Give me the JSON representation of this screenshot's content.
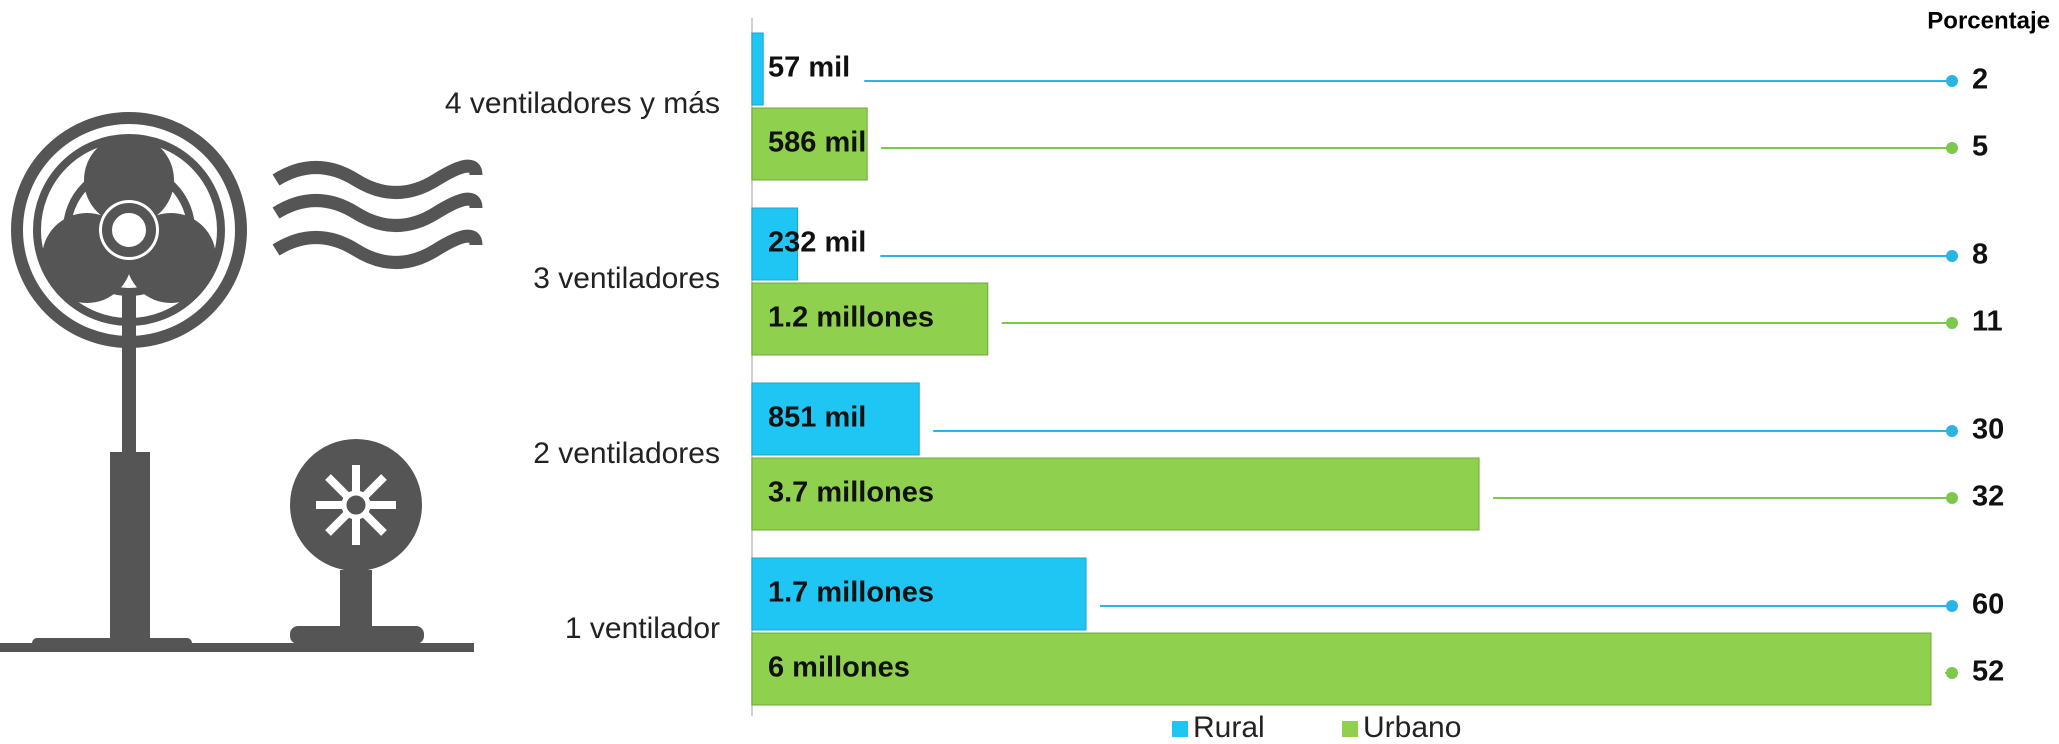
{
  "chart_data": {
    "type": "hbar",
    "categories": [
      "4 ventiladores y más",
      "3 ventiladores",
      "2 ventiladores",
      "1 ventilador"
    ],
    "series": [
      {
        "name": "Rural",
        "color": "#1fc6f3",
        "line_color": "#2bb3e6",
        "values": [
          57000,
          232000,
          851000,
          1700000
        ],
        "value_labels": [
          "57 mil",
          "232 mil",
          "851 mil",
          "1.7 millones"
        ],
        "percentages": [
          2,
          8,
          30,
          60
        ]
      },
      {
        "name": "Urbano",
        "color": "#8fd14f",
        "line_color": "#7cc84a",
        "values": [
          586000,
          1200000,
          3700000,
          6000000
        ],
        "value_labels": [
          "586 mil",
          "1.2 millones",
          "3.7 millones",
          "6 millones"
        ],
        "percentages": [
          5,
          11,
          32,
          52
        ]
      }
    ],
    "percent_heading": "Porcentaje",
    "xlim": [
      0,
      6000000
    ]
  }
}
